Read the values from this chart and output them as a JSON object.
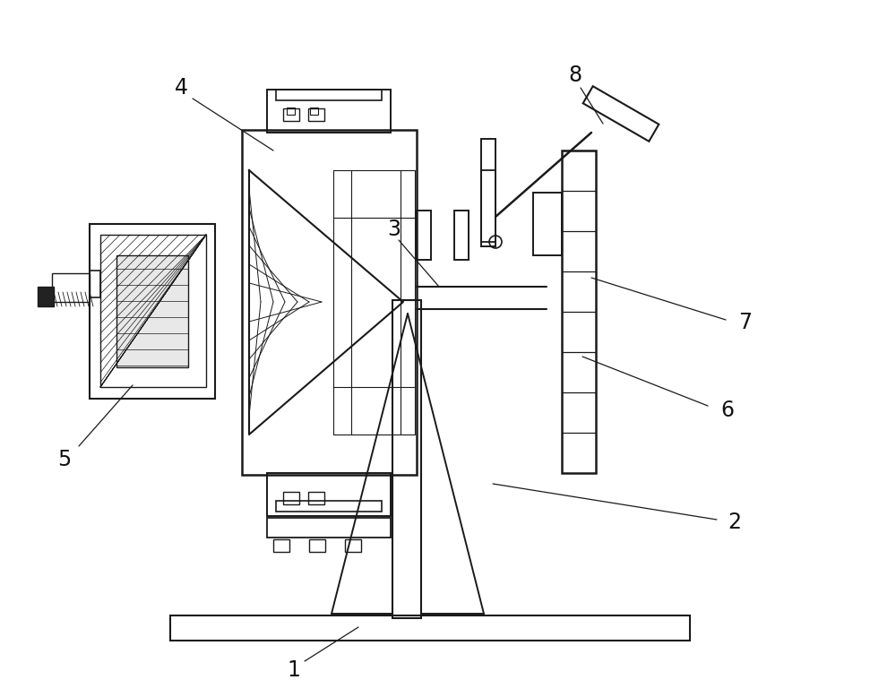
{
  "bg_color": "#ffffff",
  "line_color": "#1a1a1a",
  "lw": 1.2,
  "fig_w": 10.0,
  "fig_h": 7.78
}
